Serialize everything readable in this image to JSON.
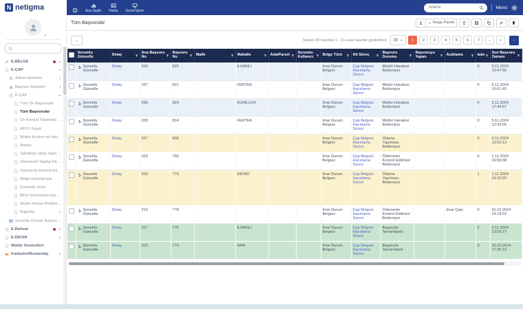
{
  "brand": {
    "name": "netigma"
  },
  "topnav": {
    "items": [
      {
        "name": "nav-status",
        "icon": "clock-icon",
        "label": ""
      },
      {
        "name": "nav-ana-sayfa",
        "icon": "chart-icon",
        "label": "Ana Sayfa"
      },
      {
        "name": "nav-harita",
        "icon": "map-icon",
        "label": "Harita"
      },
      {
        "name": "nav-genel-islem",
        "icon": "monitor-icon",
        "label": "Genel İşlem"
      }
    ],
    "search_placeholder": "Arama",
    "menu_label": "Menü"
  },
  "sidebar": {
    "items": [
      {
        "label": "E-BELGE",
        "icon": "pencil-icon",
        "level": 0,
        "chevron": "down",
        "dot": true
      },
      {
        "label": "E-ÇAP",
        "icon": "doc-icon",
        "level": 0,
        "chevron": "down"
      },
      {
        "label": "Admin İşlemleri",
        "icon": "gear-icon",
        "level": 1,
        "chevron": "right"
      },
      {
        "label": "Başvuru İşlemleri",
        "icon": "lock-icon",
        "level": 1,
        "chevron": "right"
      },
      {
        "label": "E-ÇAP",
        "icon": "home-icon",
        "level": 1,
        "chevron": "down"
      },
      {
        "label": "Tüm Ön Başvurular",
        "icon": "doc-icon",
        "level": 2
      },
      {
        "label": "Tüm Başvurular",
        "icon": "doc-icon",
        "level": 2,
        "active": true
      },
      {
        "label": "Ön Kontrol Yapılması Bekleniyor",
        "icon": "doc-icon",
        "level": 2
      },
      {
        "label": "EBYS Kaydı",
        "icon": "doc-icon",
        "level": 2
      },
      {
        "label": "Müdür Kontrol ve Havalesi Bekle...",
        "icon": "doc-icon",
        "level": 2
      },
      {
        "label": "Atama",
        "icon": "doc-icon",
        "level": 2
      },
      {
        "label": "Tahakkuk Girişi Yapılması Beklen...",
        "icon": "doc-icon",
        "level": 2
      },
      {
        "label": "Ödemenin Yapılıp Dekontun Yükl...",
        "icon": "doc-icon",
        "level": 2
      },
      {
        "label": "Ödemenin Kontrol Edilmesi Bekl...",
        "icon": "doc-icon",
        "level": 2
      },
      {
        "label": "Belge Hazırlanıyor",
        "icon": "doc-icon",
        "level": 2
      },
      {
        "label": "Kontrolör İmza",
        "icon": "doc-icon",
        "level": 2
      },
      {
        "label": "Birim Sorumlusu İmzası Beklen...",
        "icon": "doc-icon",
        "level": 2
      },
      {
        "label": "Müdür İmzası Bekleniyor",
        "icon": "doc-icon",
        "level": 2
      },
      {
        "label": "Raporlar",
        "icon": "doc-icon",
        "level": 2,
        "chevron": "right"
      },
      {
        "label": "Sorumlu Olunan Başvurular",
        "icon": "table-icon",
        "level": 1,
        "icon_color": "#4a6fb5"
      },
      {
        "label": "E-Ruhsat",
        "icon": "home-icon",
        "level": 0,
        "chevron": "right",
        "dot": true
      },
      {
        "label": "E-İSKAN",
        "icon": "doc-icon",
        "level": 0,
        "chevron": "right"
      },
      {
        "label": "Müdür Kontrolleri",
        "icon": "doc-icon",
        "level": 0
      },
      {
        "label": "Kadastro/Numarataj",
        "icon": "folder-icon",
        "level": 0,
        "chevron": "right",
        "icon_color": "#e8a33d"
      }
    ]
  },
  "page": {
    "title": "Tüm Başvurular"
  },
  "toolbar": {
    "query_panel_label": "Sorgu Paneli"
  },
  "list_tools": {
    "summary": "Toplam 90 kayıttan 1 - 15 arası kayıtlar gösteriliyor",
    "page_size": "15",
    "pages": [
      {
        "label": "1",
        "active": true
      },
      {
        "label": "2"
      },
      {
        "label": "3"
      },
      {
        "label": "4"
      },
      {
        "label": "5"
      },
      {
        "label": "6"
      },
      {
        "label": "7"
      },
      {
        "label": "..."
      },
      {
        "label": "»"
      }
    ]
  },
  "table": {
    "update_label": "Sorumlu Güncelle",
    "detail_label": "Detay",
    "headers": [
      {
        "label": ""
      },
      {
        "label": "Sorumlu Güncelle"
      },
      {
        "label": "Detay",
        "filter": true
      },
      {
        "label": "Ana Başvuru No",
        "filter": true
      },
      {
        "label": "Başvuru No",
        "filter": true
      },
      {
        "label": "Malik",
        "filter": true
      },
      {
        "label": "Mahalle",
        "filter": true
      },
      {
        "label": "Ada/Parsel",
        "filter": true
      },
      {
        "label": "Sorumlu Kullanıcı",
        "filter": true
      },
      {
        "label": "Belge Türü",
        "filter": true
      },
      {
        "label": "Alt Süreç",
        "filter": true
      },
      {
        "label": "Başvuru Durumu",
        "filter": true
      },
      {
        "label": "Başvuruyu Yapan",
        "filter": true
      },
      {
        "label": "Açıklama",
        "filter": true
      },
      {
        "label": "İade",
        "filter": true
      },
      {
        "label": "Son Başvuru Zamanı",
        "filter": true
      }
    ],
    "rows": [
      {
        "bg": "blue",
        "ana": "339",
        "no": "825",
        "malik": "",
        "mahalle": "İLHANLI",
        "ada": "",
        "kullanici": "",
        "belge": "İmar Durum Belgesi",
        "surec": "Çap Belgesi Hazırlama Süreci",
        "durum": "Müdür Havalesi Bekleniyor",
        "yapan": "",
        "aciklama": "",
        "iade": "0",
        "zaman": "6.11.2024 10:47:50"
      },
      {
        "bg": "white",
        "ana": "337",
        "no": "821",
        "malik": "",
        "mahalle": "FERTEK",
        "ada": "",
        "kullanici": "",
        "belge": "İmar Durum Belgesi",
        "surec": "Çap Belgesi Hazırlama Süreci",
        "durum": "Müdür Havalesi Bekleniyor",
        "yapan": "",
        "aciklama": "",
        "iade": "0",
        "zaman": "6.11.2024 10:01:43"
      },
      {
        "bg": "blue",
        "ana": "336",
        "no": "820",
        "malik": "",
        "mahalle": "KUMLUCA",
        "ada": "",
        "kullanici": "",
        "belge": "İmar Durum Belgesi",
        "surec": "Çap Belgesi Hazırlama Süreci",
        "durum": "Müdür Havalesi Bekleniyor",
        "yapan": "",
        "aciklama": "",
        "iade": "0",
        "zaman": "5.11.2024 17:44:57"
      },
      {
        "bg": "white",
        "ana": "329",
        "no": "814",
        "malik": "",
        "mahalle": "FERTEK",
        "ada": "",
        "kullanici": "",
        "belge": "İmar Durum Belgesi",
        "surec": "Çap Belgesi Hazırlama Süreci",
        "durum": "Müdür Havalesi Bekleniyor",
        "yapan": "",
        "aciklama": "",
        "iade": "0",
        "zaman": "5.11.2024 12:43:06"
      },
      {
        "bg": "yellow",
        "ana": "327",
        "no": "805",
        "malik": "",
        "mahalle": "",
        "ada": "",
        "kullanici": "",
        "belge": "İmar Durum Belgesi",
        "surec": "Çap Belgesi Hazırlama Süreci",
        "durum": "Ödeme Yapılması Bekleniyor",
        "yapan": "",
        "aciklama": "",
        "iade": "0",
        "zaman": "4.11.2024 12:52:13"
      },
      {
        "bg": "white",
        "ana": "323",
        "no": "790",
        "malik": "",
        "mahalle": "",
        "ada": "",
        "kullanici": "",
        "belge": "İmar Durum Belgesi",
        "surec": "Çap Belgesi Hazırlama Süreci",
        "durum": "Ödemenin Kontrol Edilmesi Bekleniyor",
        "yapan": "",
        "aciklama": "",
        "iade": "0",
        "zaman": "1.11.2024 16:56:08"
      },
      {
        "bg": "yellow",
        "tall": true,
        "ana": "320",
        "no": "779",
        "malik": "",
        "mahalle": "İNÖNÜ",
        "ada": "",
        "kullanici": "",
        "belge": "İmar Durum Belgesi",
        "surec": "Çap Belgesi Hazırlama Süreci",
        "durum": "Ödeme Yapılması Bekleniyor",
        "yapan": "",
        "aciklama": "",
        "iade": "1",
        "zaman": "1.11.2024 14:22:20"
      },
      {
        "bg": "white",
        "ana": "319",
        "no": "778",
        "malik": "",
        "mahalle": "",
        "ada": "",
        "kullanici": "",
        "belge": "İmar Durum Belgesi",
        "surec": "Çap Belgesi Hazırlama Süreci",
        "durum": "Ödemenin Kontrol Edilmesi Bekleniyor",
        "yapan": "",
        "aciklama": "İmar Çapı",
        "iade": "0",
        "zaman": "31.10.2024 14:18:53"
      },
      {
        "bg": "green",
        "ana": "317",
        "no": "776",
        "malik": "",
        "mahalle": "İLHANLI",
        "ada": "",
        "kullanici": "",
        "belge": "İmar Durum Belgesi",
        "surec": "Çap Belgesi Hazırlama Süreci",
        "durum": "Başarıyla Tamamlandı",
        "yapan": "",
        "aciklama": "",
        "iade": "2",
        "zaman": "5.11.2024 10:05:27"
      },
      {
        "bg": "green",
        "ana": "315",
        "no": "774",
        "malik": "",
        "mahalle": "NAR",
        "ada": "",
        "kullanici": "",
        "belge": "İmar Durum Belgesi",
        "surec": "Çap Belgesi Hazırlama Süreci",
        "durum": "Başarıyla Tamamlandı",
        "yapan": "",
        "aciklama": "",
        "iade": "0",
        "zaman": "30.10.2024 17:36:10"
      }
    ]
  }
}
